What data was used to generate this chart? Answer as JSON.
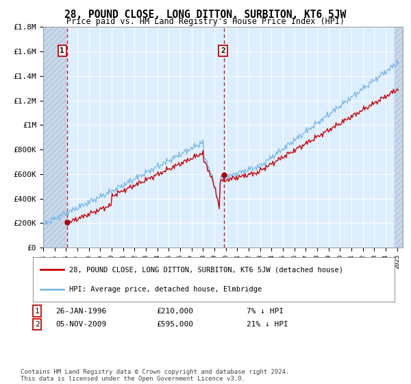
{
  "title": "28, POUND CLOSE, LONG DITTON, SURBITON, KT6 5JW",
  "subtitle": "Price paid vs. HM Land Registry's House Price Index (HPI)",
  "ylim": [
    0,
    1800000
  ],
  "yticks": [
    0,
    200000,
    400000,
    600000,
    800000,
    1000000,
    1200000,
    1400000,
    1600000,
    1800000
  ],
  "ytick_labels": [
    "£0",
    "£200K",
    "£400K",
    "£600K",
    "£800K",
    "£1M",
    "£1.2M",
    "£1.4M",
    "£1.6M",
    "£1.8M"
  ],
  "xlim_start": 1994.0,
  "xlim_end": 2025.5,
  "hpi_color": "#7ab8e8",
  "price_color": "#cc0000",
  "marker_color": "#aa0000",
  "annotation_box_color": "#cc0000",
  "bg_color": "#ddeeff",
  "legend_label_price": "28, POUND CLOSE, LONG DITTON, SURBITON, KT6 5JW (detached house)",
  "legend_label_hpi": "HPI: Average price, detached house, Elmbridge",
  "sale1_date": 1996.07,
  "sale1_price": 210000,
  "sale1_label": "1",
  "sale2_date": 2009.84,
  "sale2_price": 595000,
  "sale2_label": "2",
  "footnote1_box": "1",
  "footnote1_text": "   26-JAN-1996          £210,000          7% ↓ HPI",
  "footnote2_box": "2",
  "footnote2_text": "   05-NOV-2009          £595,000          21% ↓ HPI",
  "copyright": "Contains HM Land Registry data © Crown copyright and database right 2024.\nThis data is licensed under the Open Government Licence v3.0."
}
